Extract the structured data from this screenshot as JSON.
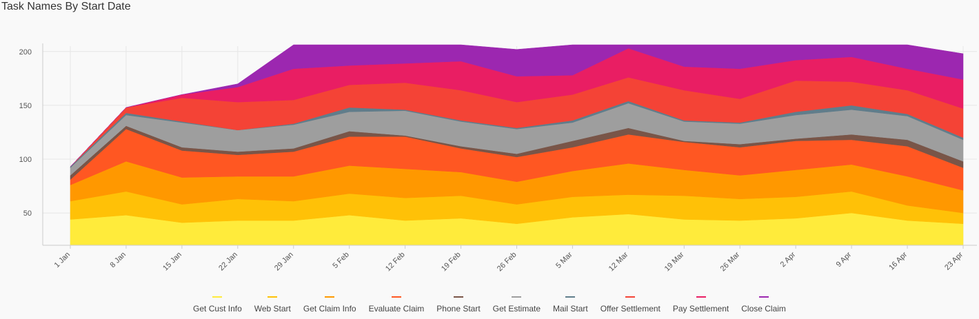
{
  "chart_data": {
    "type": "area",
    "stacked": true,
    "title": "Task Names By Start Date",
    "xlabel": "",
    "ylabel": "",
    "ylim": [
      20,
      205
    ],
    "yticks": [
      50,
      100,
      150,
      200
    ],
    "grid": true,
    "legend_position": "bottom",
    "categories": [
      "1 Jan",
      "8 Jan",
      "15 Jan",
      "22 Jan",
      "29 Jan",
      "5 Feb",
      "12 Feb",
      "19 Feb",
      "26 Feb",
      "5 Mar",
      "12 Mar",
      "19 Mar",
      "26 Mar",
      "2 Apr",
      "9 Apr",
      "16 Apr",
      "23 Apr"
    ],
    "series": [
      {
        "name": "Get Cust Info",
        "color": "#ffeb3b",
        "values": [
          24,
          28,
          21,
          23,
          23,
          28,
          23,
          25,
          20,
          26,
          29,
          24,
          23,
          25,
          30,
          23,
          20
        ]
      },
      {
        "name": "Web Start",
        "color": "#ffc107",
        "values": [
          17,
          22,
          17,
          20,
          18,
          20,
          21,
          21,
          18,
          19,
          18,
          22,
          20,
          20,
          20,
          14,
          10
        ]
      },
      {
        "name": "Get Claim Info",
        "color": "#ff9800",
        "values": [
          15,
          28,
          25,
          21,
          23,
          26,
          27,
          22,
          21,
          24,
          29,
          24,
          22,
          25,
          25,
          27,
          21
        ]
      },
      {
        "name": "Evaluate Claim",
        "color": "#ff5722",
        "values": [
          5,
          30,
          25,
          20,
          23,
          27,
          30,
          22,
          23,
          22,
          27,
          26,
          26,
          27,
          23,
          28,
          21
        ]
      },
      {
        "name": "Phone Start",
        "color": "#795548",
        "values": [
          4,
          3,
          3,
          3,
          3,
          5,
          1,
          2,
          3,
          6,
          6,
          1,
          3,
          2,
          5,
          6,
          6
        ]
      },
      {
        "name": "Get Estimate",
        "color": "#9e9e9e",
        "values": [
          7,
          10,
          23,
          20,
          22,
          18,
          23,
          23,
          23,
          17,
          23,
          18,
          19,
          22,
          23,
          22,
          20
        ]
      },
      {
        "name": "Mail Start",
        "color": "#607d8b",
        "values": [
          1,
          2,
          1,
          0,
          1,
          4,
          1,
          1,
          1,
          2,
          2,
          1,
          1,
          3,
          4,
          2,
          2
        ]
      },
      {
        "name": "Offer Settlement",
        "color": "#f44336",
        "values": [
          0,
          5,
          22,
          26,
          22,
          21,
          25,
          28,
          24,
          24,
          22,
          28,
          22,
          29,
          22,
          22,
          27
        ]
      },
      {
        "name": "Pay Settlement",
        "color": "#e91e63",
        "values": [
          0,
          0,
          3,
          14,
          29,
          18,
          18,
          27,
          24,
          18,
          27,
          22,
          28,
          19,
          23,
          20,
          27
        ]
      },
      {
        "name": "Close Claim",
        "color": "#9c27b0",
        "values": [
          0,
          0,
          0,
          3,
          27,
          24,
          26,
          21,
          25,
          34,
          22,
          21,
          26,
          30,
          27,
          24,
          24
        ]
      }
    ]
  }
}
